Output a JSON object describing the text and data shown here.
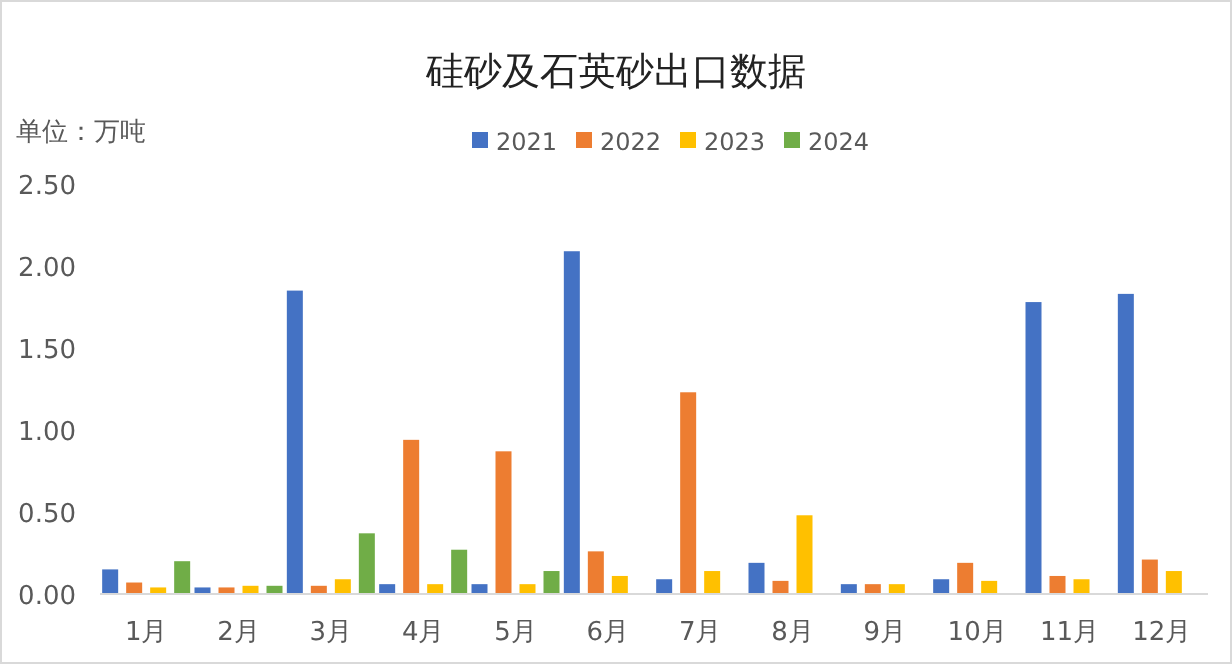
{
  "chart_data": {
    "type": "bar",
    "title": "硅砂及石英砂出口数据",
    "ylabel": "单位：万吨",
    "categories": [
      "1月",
      "2月",
      "3月",
      "4月",
      "5月",
      "6月",
      "7月",
      "8月",
      "9月",
      "10月",
      "11月",
      "12月"
    ],
    "series": [
      {
        "name": "2021",
        "color": "#4472c4",
        "values": [
          0.15,
          0.04,
          1.85,
          0.06,
          0.06,
          2.09,
          0.09,
          0.19,
          0.06,
          0.09,
          1.78,
          1.83
        ]
      },
      {
        "name": "2022",
        "color": "#ed7d31",
        "values": [
          0.07,
          0.04,
          0.05,
          0.94,
          0.87,
          0.26,
          1.23,
          0.08,
          0.06,
          0.19,
          0.11,
          0.21
        ]
      },
      {
        "name": "2023",
        "color": "#ffc000",
        "values": [
          0.04,
          0.05,
          0.09,
          0.06,
          0.06,
          0.11,
          0.14,
          0.48,
          0.06,
          0.08,
          0.09,
          0.14
        ]
      },
      {
        "name": "2024",
        "color": "#70ad47",
        "values": [
          0.2,
          0.05,
          0.37,
          0.27,
          0.14,
          null,
          null,
          null,
          null,
          null,
          null,
          null
        ]
      }
    ],
    "ylim": [
      0,
      2.5
    ],
    "yticks": [
      {
        "value": 0,
        "label": "0.00"
      },
      {
        "value": 0.5,
        "label": "0.50"
      },
      {
        "value": 1,
        "label": "1.00"
      },
      {
        "value": 1.5,
        "label": "1.50"
      },
      {
        "value": 2,
        "label": "2.00"
      },
      {
        "value": 2.5,
        "label": "2.50"
      }
    ],
    "legend": "top",
    "grid": false
  }
}
